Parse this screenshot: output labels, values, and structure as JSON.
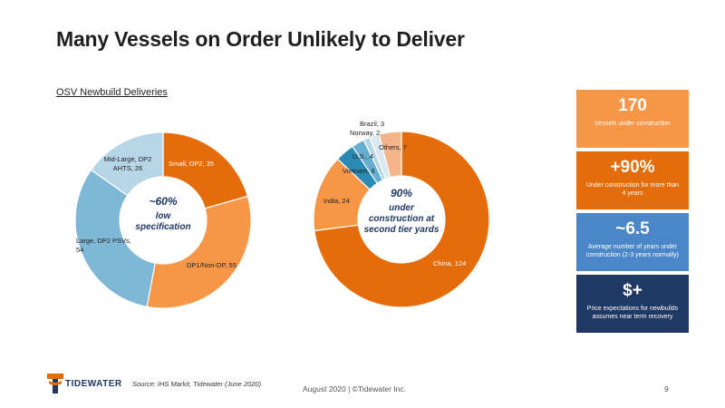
{
  "page": {
    "title": "Many Vessels on Order Unlikely to Deliver",
    "subtitle": "OSV Newbuild Deliveries"
  },
  "chart_data": [
    {
      "type": "pie",
      "variant": "donut",
      "categories": [
        "Small, DP2, 35",
        "DP1/Non-DP, 55",
        "Large, DP2 PSVs, 54",
        "Mid-Large, DP2 AHTS, 26"
      ],
      "values": [
        35,
        55,
        54,
        26
      ],
      "colors": [
        "#e46c0a",
        "#f79646",
        "#7fb7d6",
        "#b6d5e6"
      ],
      "center_text": [
        "~60%",
        "low",
        "specification"
      ]
    },
    {
      "type": "pie",
      "variant": "donut",
      "categories": [
        "China, 124",
        "India, 24",
        "Vietnam, 6",
        "U.S., 4",
        "Norway, 2",
        "Brazil, 3",
        "Others, 7"
      ],
      "values": [
        124,
        24,
        6,
        4,
        2,
        3,
        7
      ],
      "colors": [
        "#e46c0a",
        "#f79646",
        "#2a8ab4",
        "#65aed0",
        "#b6d5e6",
        "#d9e8f1",
        "#f3b48a"
      ],
      "center_text": [
        "90%",
        "under",
        "construction at",
        "second tier yards"
      ]
    }
  ],
  "stats": [
    {
      "big": "170",
      "small": "Vessels under construction",
      "color": "#f79646"
    },
    {
      "big": "+90%",
      "small": "Under construction for more than 4 years",
      "color": "#e46c0a"
    },
    {
      "big": "~6.5",
      "small": "Average number of years under construction (2-3 years normally)",
      "color": "#4a86c8"
    },
    {
      "big": "$+",
      "small": "Price expectations for newbuilds assumes near term recovery",
      "color": "#1f3864"
    }
  ],
  "footer": {
    "logo_text": "TIDEWATER",
    "source": "Source: IHS Markit, Tidewater (June 2020)",
    "center": "August 2020 | ©Tidewater Inc.",
    "page_number": "9"
  }
}
